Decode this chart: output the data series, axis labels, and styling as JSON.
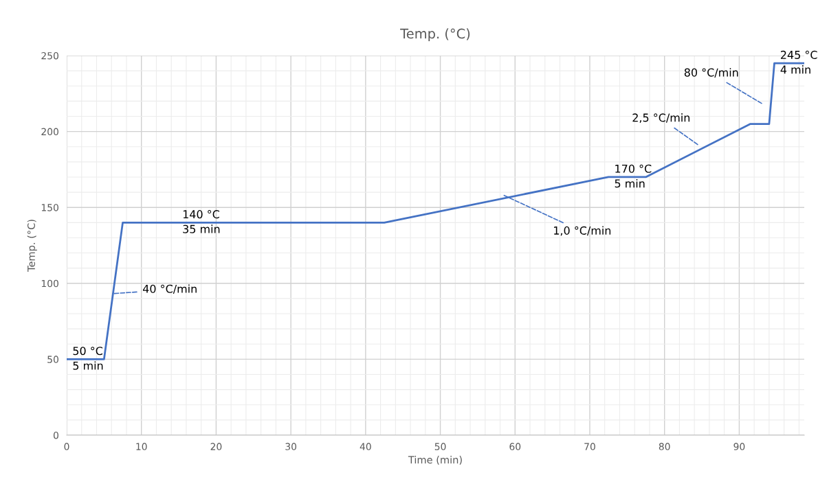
{
  "chart_data": {
    "type": "line",
    "title": "Temp. (°C)",
    "xlabel": "Time (min)",
    "ylabel": "Temp. (°C)",
    "x": [
      0,
      5,
      7.5,
      42.5,
      72.5,
      77.5,
      91.5,
      94,
      94.7,
      98.7
    ],
    "series": [
      {
        "color": "#4472c4",
        "values": [
          50,
          50,
          140,
          140,
          170,
          170,
          205,
          205,
          245,
          245
        ]
      }
    ],
    "xlim": [
      0,
      98.7
    ],
    "xticks": [
      0,
      10,
      20,
      30,
      40,
      50,
      60,
      70,
      80,
      90
    ],
    "ylim": [
      0,
      250
    ],
    "yticks": [
      0,
      50,
      100,
      150,
      200,
      250
    ],
    "grid": true,
    "marker": "none",
    "line_style": "solid",
    "annotations": [
      {
        "text": "50 °C\n5 min",
        "x": 0,
        "y": 50
      },
      {
        "text": "140 °C\n35 min",
        "x": 14.7,
        "y": 140
      },
      {
        "text": "170 °C\n5 min",
        "x": 72.5,
        "y": 170
      },
      {
        "text": "245 °C\n4 min",
        "x": 94.7,
        "y": 245
      },
      "40 °C/min",
      {
        "text": "1,0 °C/min",
        "x": 58.5,
        "y": 158
      },
      "2,5 °C/min",
      "80 °C/min"
    ]
  }
}
